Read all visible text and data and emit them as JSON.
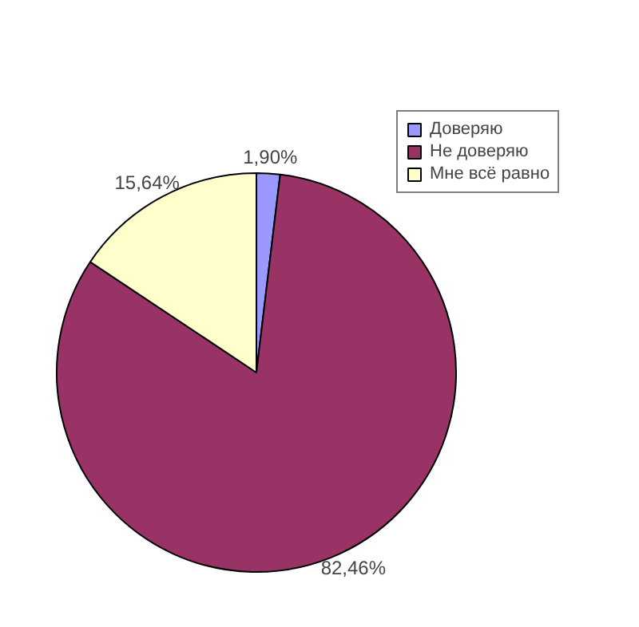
{
  "chart_data": {
    "type": "pie",
    "categories": [
      "Доверяю",
      "Не доверяю",
      "Мне всё равно"
    ],
    "values": [
      1.9,
      82.46,
      15.64
    ],
    "colors": [
      "#9999ff",
      "#993366",
      "#ffffcc"
    ],
    "value_labels": [
      "1,90%",
      "82,46%",
      "15,64%"
    ],
    "legend": "right"
  }
}
